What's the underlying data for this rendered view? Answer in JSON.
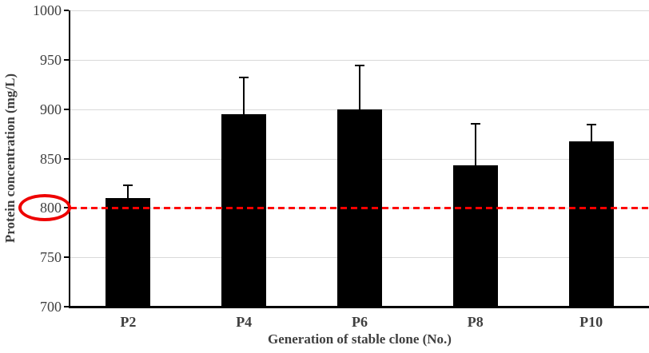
{
  "chart_data": {
    "type": "bar",
    "title": "",
    "categories": [
      "P2",
      "P4",
      "P6",
      "P8",
      "P10"
    ],
    "series": [
      {
        "name": "Protein concentration",
        "values": [
          810,
          895,
          900,
          843,
          867
        ],
        "error_up": [
          13,
          37,
          44,
          42,
          17
        ],
        "color": "#000000"
      }
    ],
    "xlabel": "Generation of stable clone (No.)",
    "ylabel": "Protein concentration (mg/L)",
    "ylim": [
      700,
      1000
    ],
    "yticks": [
      700,
      750,
      800,
      850,
      900,
      950,
      1000
    ],
    "grid": "horizontal-only",
    "gridline_color": "#d9d9d9",
    "legend_position": "none",
    "reference_line": {
      "value": 800,
      "color": "#fe0000",
      "style": "dashed"
    },
    "annotation": {
      "shape": "ellipse",
      "around": "y-tick-label-800",
      "color": "#ee0000"
    }
  }
}
